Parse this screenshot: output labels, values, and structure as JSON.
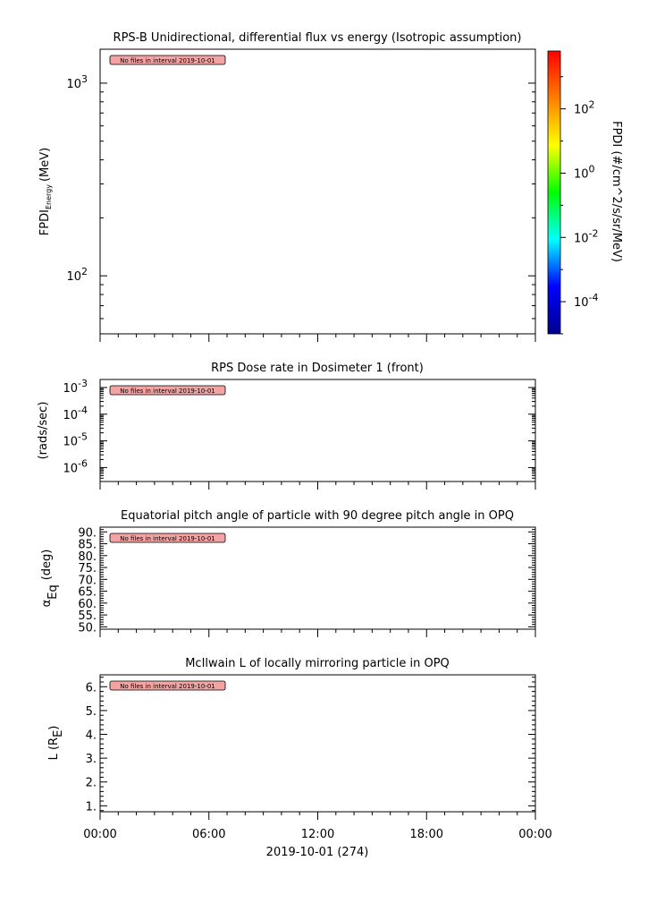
{
  "chart_data": [
    {
      "type": "heatmap",
      "title": "RPS-B  Unidirectional, differential flux vs energy (Isotropic assumption)",
      "ylabel_main": "FPDI",
      "ylabel_sub": "Energy",
      "ylabel_unit": "(MeV)",
      "yscale": "log",
      "ylim": [
        50,
        1500
      ],
      "yticks": [
        {
          "value": 100,
          "base": "10",
          "exp": "2"
        },
        {
          "value": 1000,
          "base": "10",
          "exp": "3"
        }
      ],
      "message": "No files in interval 2019-10-01",
      "colorbar": {
        "label": "FPDI (#/cm^2/s/sr/MeV)",
        "scale": "log",
        "range_log": [
          -5,
          3.8
        ],
        "ticks": [
          {
            "value": -4,
            "base": "10",
            "exp": "-4"
          },
          {
            "value": -2,
            "base": "10",
            "exp": "-2"
          },
          {
            "value": 0,
            "base": "10",
            "exp": "0"
          },
          {
            "value": 2,
            "base": "10",
            "exp": "2"
          }
        ],
        "colors": [
          "#00008f",
          "#0000ff",
          "#00ffff",
          "#00ff00",
          "#ffff00",
          "#ff7f00",
          "#ff0000"
        ]
      }
    },
    {
      "type": "line",
      "title": "RPS  Dose rate in Dosimeter 1 (front)",
      "ylabel": "(rads/sec)",
      "yscale": "log",
      "ylim": [
        3e-07,
        0.002
      ],
      "yticks": [
        {
          "value": 1e-06,
          "base": "10",
          "exp": "-6"
        },
        {
          "value": 1e-05,
          "base": "10",
          "exp": "-5"
        },
        {
          "value": 0.0001,
          "base": "10",
          "exp": "-4"
        },
        {
          "value": 0.001,
          "base": "10",
          "exp": "-3"
        }
      ],
      "message": "No files in interval 2019-10-01"
    },
    {
      "type": "line",
      "title": "Equatorial pitch angle of particle with 90 degree pitch angle in OPQ",
      "ylabel_main": "α",
      "ylabel_sub": "Eq",
      "ylabel_unit": "(deg)",
      "yscale": "linear",
      "ylim": [
        49,
        92
      ],
      "yticks": [
        {
          "value": 50,
          "label": "50."
        },
        {
          "value": 55,
          "label": "55."
        },
        {
          "value": 60,
          "label": "60."
        },
        {
          "value": 65,
          "label": "65."
        },
        {
          "value": 70,
          "label": "70."
        },
        {
          "value": 75,
          "label": "75."
        },
        {
          "value": 80,
          "label": "80."
        },
        {
          "value": 85,
          "label": "85."
        },
        {
          "value": 90,
          "label": "90."
        }
      ],
      "yminor_step": 1,
      "message": "No files in interval 2019-10-01"
    },
    {
      "type": "line",
      "title": "McIlwain L of locally mirroring particle in OPQ",
      "ylabel_main": "L (R",
      "ylabel_sub": "E",
      "ylabel_unit": ")",
      "yscale": "linear",
      "ylim": [
        0.75,
        6.5
      ],
      "yticks": [
        {
          "value": 1,
          "label": "1."
        },
        {
          "value": 2,
          "label": "2."
        },
        {
          "value": 3,
          "label": "3."
        },
        {
          "value": 4,
          "label": "4."
        },
        {
          "value": 5,
          "label": "5."
        },
        {
          "value": 6,
          "label": "6."
        }
      ],
      "yminor_step": 0.2,
      "message": "No files in interval 2019-10-01"
    }
  ],
  "xaxis": {
    "ticks": [
      {
        "hour": 0,
        "label": "00:00"
      },
      {
        "hour": 6,
        "label": "06:00"
      },
      {
        "hour": 12,
        "label": "12:00"
      },
      {
        "hour": 18,
        "label": "18:00"
      },
      {
        "hour": 24,
        "label": "00:00"
      }
    ],
    "minor_step_hours": 1,
    "xlim_hours": [
      0,
      24
    ],
    "label": "2019-10-01 (274)"
  }
}
